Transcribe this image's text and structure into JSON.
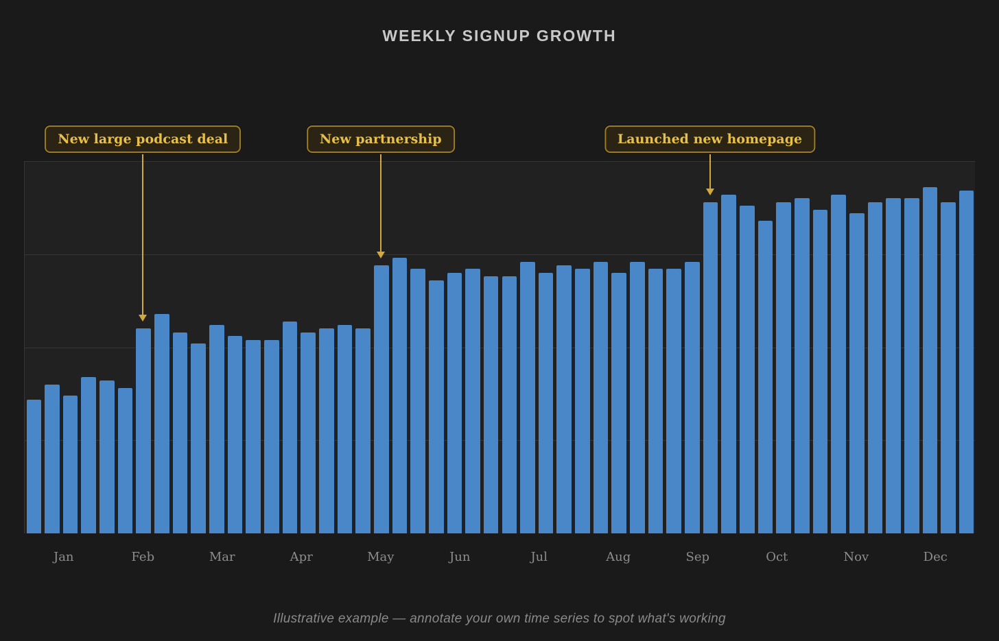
{
  "title": "WEEKLY SIGNUP GROWTH",
  "caption": "Illustrative example — annotate your own time series to spot what's working",
  "colors": {
    "background": "#1a1a1a",
    "plot_background": "#212121",
    "bar": "#4a87c9",
    "annotation_text": "#e6c04a",
    "annotation_border": "#9c7c1f",
    "annotation_bg": "#2b2414",
    "arrow": "#d4a93c",
    "axis_text": "#8d8d8d",
    "title_text": "#c8c8c8",
    "caption_text": "#8a8a8a",
    "gridline": "#363636"
  },
  "annotations": [
    {
      "label": "New large podcast deal",
      "week": 7
    },
    {
      "label": "New partnership",
      "week": 20
    },
    {
      "label": "Launched new homepage",
      "week": 38
    }
  ],
  "chart_data": {
    "type": "bar",
    "title": "WEEKLY SIGNUP GROWTH",
    "xlabel": "",
    "ylabel": "",
    "x_unit": "week-of-year",
    "categories": [
      "Jan",
      "Feb",
      "Mar",
      "Apr",
      "May",
      "Jun",
      "Jul",
      "Aug",
      "Sep",
      "Oct",
      "Nov",
      "Dec"
    ],
    "values": [
      36,
      40,
      37,
      42,
      41,
      39,
      55,
      59,
      54,
      51,
      56,
      53,
      52,
      52,
      57,
      54,
      55,
      56,
      55,
      72,
      74,
      71,
      68,
      70,
      71,
      69,
      69,
      73,
      70,
      72,
      71,
      73,
      70,
      73,
      71,
      71,
      73,
      89,
      91,
      88,
      84,
      89,
      90,
      87,
      91,
      86,
      89,
      90,
      90,
      93,
      89,
      92
    ],
    "ylim": [
      0,
      100
    ],
    "grid": "horizontal",
    "gridline_values": [
      25,
      50,
      75,
      100
    ],
    "legend": "none",
    "bar_color": "#4a87c9",
    "notes": "Step increases at week 7 (New large podcast deal), week 20 (New partnership), week 38 (Launched new homepage)"
  }
}
